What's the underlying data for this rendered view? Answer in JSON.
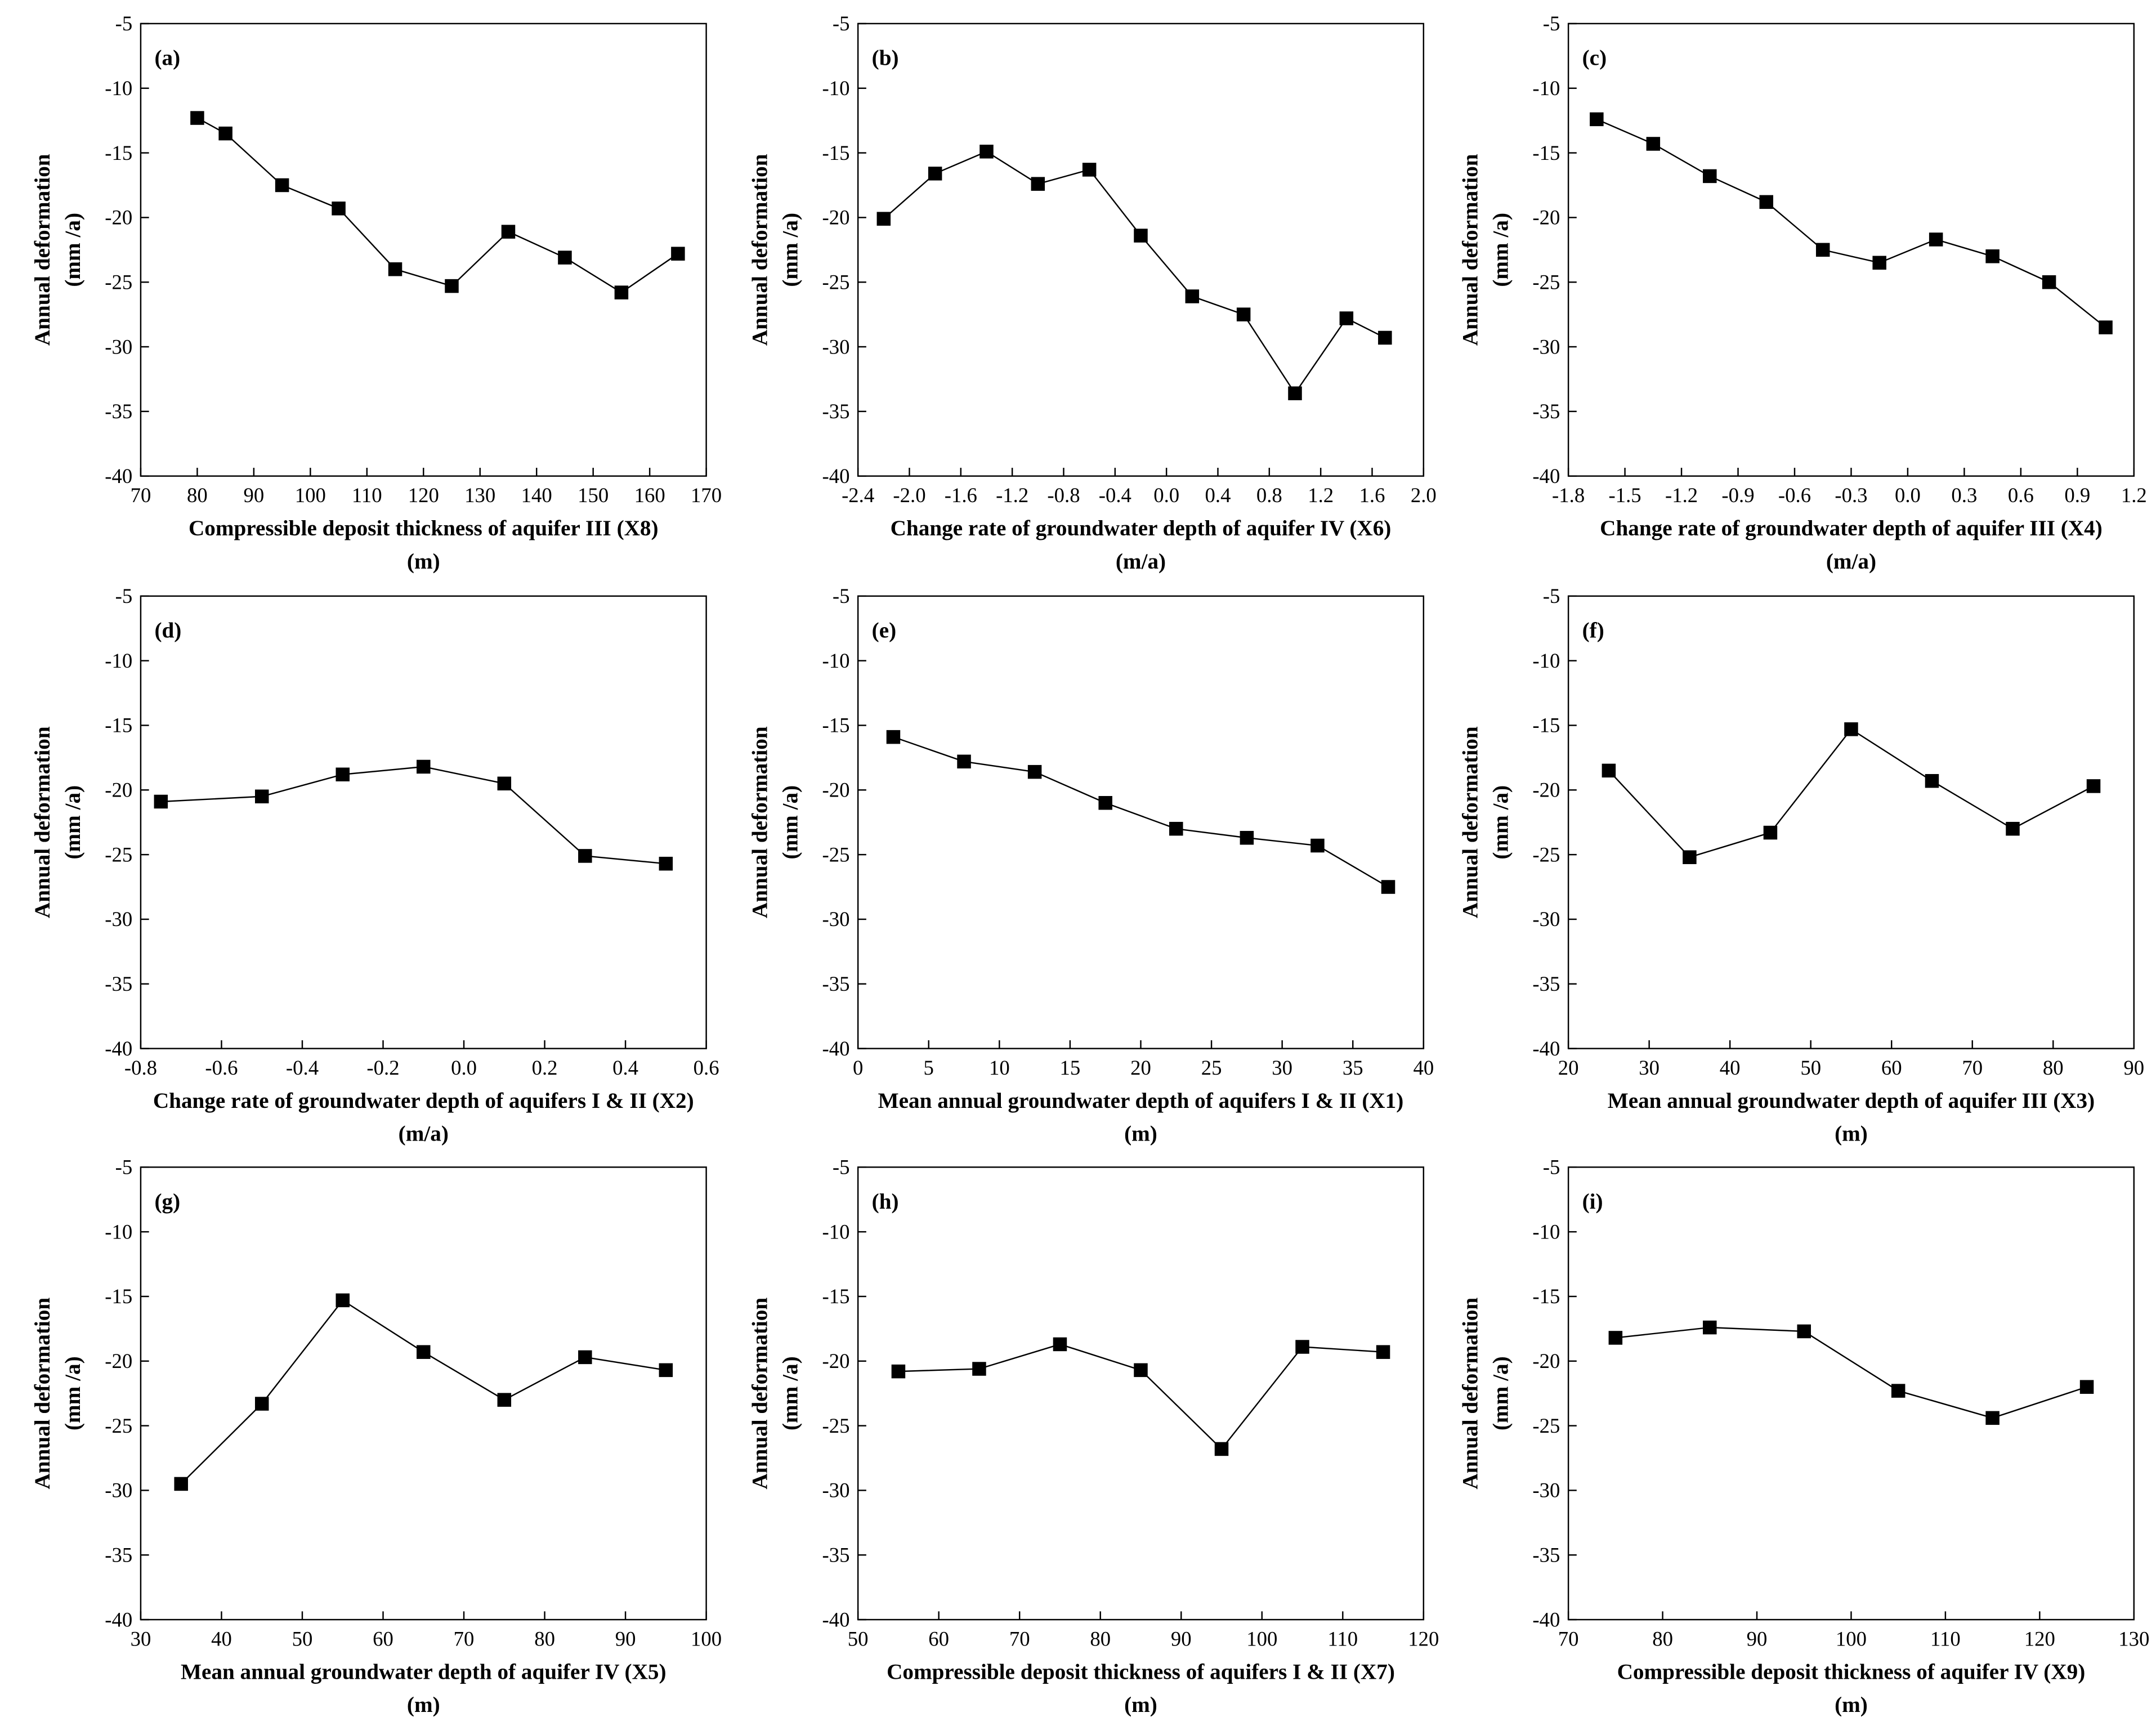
{
  "chart_data": [
    {
      "type": "line",
      "title": "(a)",
      "x_label": "Compressible deposit thickness of aquifer III (X8)",
      "x_unit": "(m)",
      "y_label": "Annual deformation",
      "y_unit": "(mm /a)",
      "x": [
        80,
        85,
        95,
        105,
        115,
        125,
        135,
        145,
        155,
        165
      ],
      "series": [
        {
          "color": "#000000",
          "values": [
            -12.3,
            -13.5,
            -17.5,
            -19.3,
            -24,
            -25.3,
            -21.1,
            -23.1,
            -25.8,
            -22.8
          ]
        }
      ],
      "xlim": [
        70,
        170
      ],
      "xticks": [
        70,
        80,
        90,
        100,
        110,
        120,
        130,
        140,
        150,
        160,
        170
      ],
      "ylim": [
        -40,
        -5
      ],
      "yticks": [
        -5,
        -10,
        -15,
        -20,
        -25,
        -30,
        -35,
        -40
      ]
    },
    {
      "type": "line",
      "title": "(b)",
      "x_label": "Change rate of groundwater depth of aquifer IV (X6)",
      "x_unit": "(m/a)",
      "y_label": "Annual deformation",
      "y_unit": "(mm /a)",
      "x": [
        -2.2,
        -1.8,
        -1.4,
        -1.0,
        -0.6,
        -0.2,
        0.2,
        0.6,
        1.0,
        1.4,
        1.7
      ],
      "series": [
        {
          "color": "#000000",
          "values": [
            -20.1,
            -16.6,
            -14.9,
            -17.4,
            -16.3,
            -21.4,
            -26.1,
            -27.5,
            -33.6,
            -27.8,
            -29.3
          ]
        }
      ],
      "xlim": [
        -2.4,
        2.0
      ],
      "xticks": [
        -2.4,
        {
          "value": -2,
          "label": "-2.0"
        },
        -1.6,
        -1.2,
        -0.8,
        -0.4,
        {
          "value": 0,
          "label": "0.0"
        },
        0.4,
        0.8,
        1.2,
        1.6,
        {
          "value": 2,
          "label": "2.0"
        }
      ],
      "ylim": [
        -40,
        -5
      ],
      "yticks": [
        -5,
        -10,
        -15,
        -20,
        -25,
        -30,
        -35,
        -40
      ]
    },
    {
      "type": "line",
      "title": "(c)",
      "x_label": "Change rate of groundwater depth of aquifer III (X4)",
      "x_unit": "(m/a)",
      "y_label": "Annual deformation",
      "y_unit": "(mm /a)",
      "x": [
        -1.65,
        -1.35,
        -1.05,
        -0.75,
        -0.45,
        -0.15,
        0.15,
        0.45,
        0.75,
        1.05
      ],
      "series": [
        {
          "color": "#000000",
          "values": [
            -12.4,
            -14.3,
            -16.8,
            -18.8,
            -22.5,
            -23.5,
            -21.7,
            -23,
            -25,
            -28.5
          ]
        }
      ],
      "xlim": [
        -1.8,
        1.2
      ],
      "xticks": [
        -1.8,
        -1.5,
        -1.2,
        -0.9,
        -0.6,
        -0.3,
        {
          "value": 0,
          "label": "0.0"
        },
        0.3,
        0.6,
        0.9,
        1.2
      ],
      "ylim": [
        -40,
        -5
      ],
      "yticks": [
        -5,
        -10,
        -15,
        -20,
        -25,
        -30,
        -35,
        -40
      ]
    },
    {
      "type": "line",
      "title": "(d)",
      "x_label": "Change rate of groundwater depth of aquifers I & II (X2)",
      "x_unit": "(m/a)",
      "y_label": "Annual deformation",
      "y_unit": "(mm /a)",
      "x": [
        -0.75,
        -0.5,
        -0.3,
        -0.1,
        0.1,
        0.3,
        0.5
      ],
      "series": [
        {
          "color": "#000000",
          "values": [
            -20.9,
            -20.5,
            -18.8,
            -18.2,
            -19.5,
            -25.1,
            -25.7
          ]
        }
      ],
      "xlim": [
        -0.8,
        0.6
      ],
      "xticks": [
        -0.8,
        -0.6,
        -0.4,
        -0.2,
        {
          "value": 0,
          "label": "0.0"
        },
        0.2,
        0.4,
        0.6
      ],
      "ylim": [
        -40,
        -5
      ],
      "yticks": [
        -5,
        -10,
        -15,
        -20,
        -25,
        -30,
        -35,
        -40
      ]
    },
    {
      "type": "line",
      "title": "(e)",
      "x_label": "Mean annual groundwater depth of aquifers I & II (X1)",
      "x_unit": "(m)",
      "y_label": "Annual deformation",
      "y_unit": "(mm /a)",
      "x": [
        2.5,
        7.5,
        12.5,
        17.5,
        22.5,
        27.5,
        32.5,
        37.5
      ],
      "series": [
        {
          "color": "#000000",
          "values": [
            -15.9,
            -17.8,
            -18.6,
            -21,
            -23,
            -23.7,
            -24.3,
            -27.5
          ]
        }
      ],
      "xlim": [
        0,
        40
      ],
      "xticks": [
        0,
        5,
        10,
        15,
        20,
        25,
        30,
        35,
        40
      ],
      "ylim": [
        -40,
        -5
      ],
      "yticks": [
        -5,
        -10,
        -15,
        -20,
        -25,
        -30,
        -35,
        -40
      ]
    },
    {
      "type": "line",
      "title": "(f)",
      "x_label": "Mean annual groundwater depth of aquifer III (X3)",
      "x_unit": "(m)",
      "y_label": "Annual deformation",
      "y_unit": "(mm /a)",
      "x": [
        25,
        35,
        45,
        55,
        65,
        75,
        85
      ],
      "series": [
        {
          "color": "#000000",
          "values": [
            -18.5,
            -25.2,
            -23.3,
            -15.3,
            -19.3,
            -23,
            -19.7
          ]
        }
      ],
      "xlim": [
        20,
        90
      ],
      "xticks": [
        20,
        30,
        40,
        50,
        60,
        70,
        80,
        90
      ],
      "ylim": [
        -40,
        -5
      ],
      "yticks": [
        -5,
        -10,
        -15,
        -20,
        -25,
        -30,
        -35,
        -40
      ]
    },
    {
      "type": "line",
      "title": "(g)",
      "x_label": "Mean annual groundwater depth of aquifer IV (X5)",
      "x_unit": "(m)",
      "y_label": "Annual deformation",
      "y_unit": "(mm /a)",
      "x": [
        35,
        45,
        55,
        65,
        75,
        85,
        95
      ],
      "series": [
        {
          "color": "#000000",
          "values": [
            -29.5,
            -23.3,
            -15.3,
            -19.3,
            -23,
            -19.7,
            -20.7
          ]
        }
      ],
      "xlim": [
        30,
        100
      ],
      "xticks": [
        30,
        40,
        50,
        60,
        70,
        80,
        90,
        100
      ],
      "ylim": [
        -40,
        -5
      ],
      "yticks": [
        -5,
        -10,
        -15,
        -20,
        -25,
        -30,
        -35,
        -40
      ]
    },
    {
      "type": "line",
      "title": "(h)",
      "x_label": "Compressible deposit thickness of aquifers I & II (X7)",
      "x_unit": "(m)",
      "y_label": "Annual deformation",
      "y_unit": "(mm /a)",
      "x": [
        55,
        65,
        75,
        85,
        95,
        105,
        115
      ],
      "series": [
        {
          "color": "#000000",
          "values": [
            -20.8,
            -20.6,
            -18.7,
            -20.7,
            -26.8,
            -18.9,
            -19.3
          ]
        }
      ],
      "xlim": [
        50,
        120
      ],
      "xticks": [
        50,
        60,
        70,
        80,
        90,
        100,
        110,
        120
      ],
      "ylim": [
        -40,
        -5
      ],
      "yticks": [
        -5,
        -10,
        -15,
        -20,
        -25,
        -30,
        -35,
        -40
      ]
    },
    {
      "type": "line",
      "title": "(i)",
      "x_label": "Compressible deposit thickness of aquifer IV (X9)",
      "x_unit": "(m)",
      "y_label": "Annual deformation",
      "y_unit": "(mm /a)",
      "x": [
        75,
        85,
        95,
        105,
        115,
        125
      ],
      "series": [
        {
          "color": "#000000",
          "values": [
            -18.2,
            -17.4,
            -17.7,
            -22.3,
            -24.4,
            -22
          ]
        }
      ],
      "xlim": [
        70,
        130
      ],
      "xticks": [
        70,
        80,
        90,
        100,
        110,
        120,
        130
      ],
      "ylim": [
        -40,
        -5
      ],
      "yticks": [
        -5,
        -10,
        -15,
        -20,
        -25,
        -30,
        -35,
        -40
      ]
    }
  ]
}
